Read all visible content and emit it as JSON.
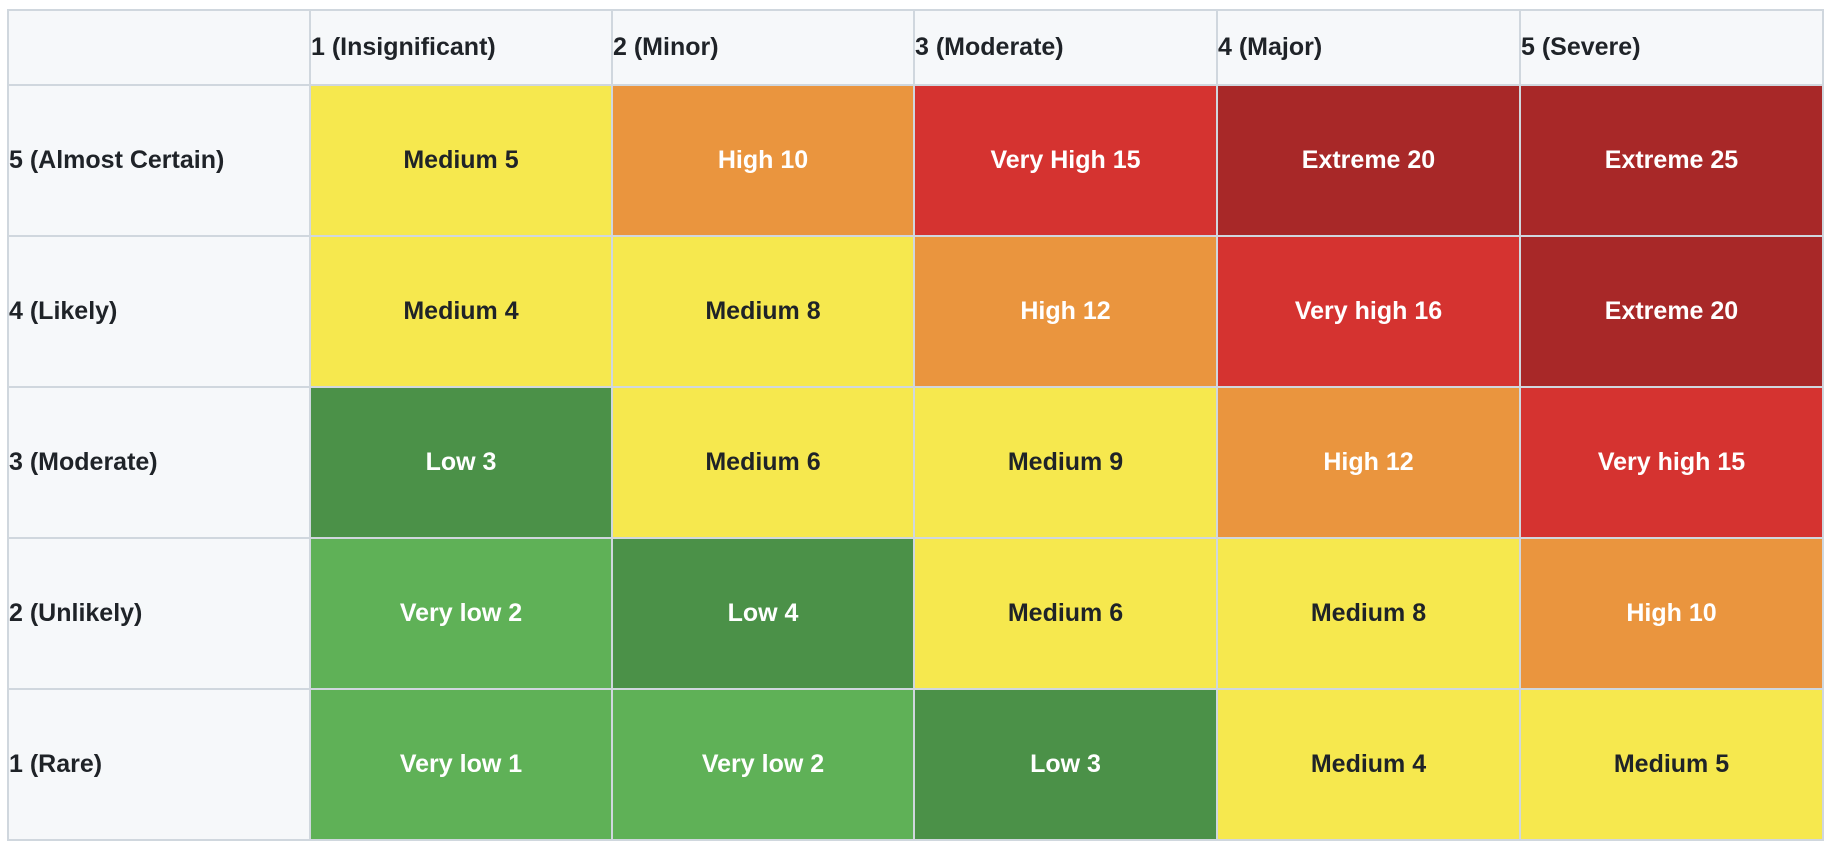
{
  "colors": {
    "very_low": "#5fb157",
    "low": "#4b9148",
    "medium": "#f6e84e",
    "high": "#ea953e",
    "very_high": "#d53330",
    "extreme": "#a82828"
  },
  "columns": [
    "1 (Insignificant)",
    "2 (Minor)",
    "3 (Moderate)",
    "4 (Major)",
    "5 (Severe)"
  ],
  "rows": [
    {
      "label": "5 (Almost Certain)",
      "cells": [
        {
          "text": "Medium 5",
          "level": "medium"
        },
        {
          "text": "High 10",
          "level": "high"
        },
        {
          "text": "Very High 15",
          "level": "very_high"
        },
        {
          "text": "Extreme 20",
          "level": "extreme"
        },
        {
          "text": "Extreme 25",
          "level": "extreme"
        }
      ]
    },
    {
      "label": "4 (Likely)",
      "cells": [
        {
          "text": "Medium 4",
          "level": "medium"
        },
        {
          "text": "Medium 8",
          "level": "medium"
        },
        {
          "text": "High 12",
          "level": "high"
        },
        {
          "text": "Very high 16",
          "level": "very_high"
        },
        {
          "text": "Extreme 20",
          "level": "extreme"
        }
      ]
    },
    {
      "label": "3 (Moderate)",
      "cells": [
        {
          "text": "Low 3",
          "level": "low"
        },
        {
          "text": "Medium 6",
          "level": "medium"
        },
        {
          "text": "Medium 9",
          "level": "medium"
        },
        {
          "text": "High 12",
          "level": "high"
        },
        {
          "text": "Very high 15",
          "level": "very_high"
        }
      ]
    },
    {
      "label": "2 (Unlikely)",
      "cells": [
        {
          "text": "Very low 2",
          "level": "very_low"
        },
        {
          "text": "Low 4",
          "level": "low"
        },
        {
          "text": "Medium 6",
          "level": "medium"
        },
        {
          "text": "Medium 8",
          "level": "medium"
        },
        {
          "text": "High 10",
          "level": "high"
        }
      ]
    },
    {
      "label": "1 (Rare)",
      "cells": [
        {
          "text": "Very low 1",
          "level": "very_low"
        },
        {
          "text": "Very low 2",
          "level": "very_low"
        },
        {
          "text": "Low 3",
          "level": "low"
        },
        {
          "text": "Medium 4",
          "level": "medium"
        },
        {
          "text": "Medium 5",
          "level": "medium"
        }
      ]
    }
  ]
}
